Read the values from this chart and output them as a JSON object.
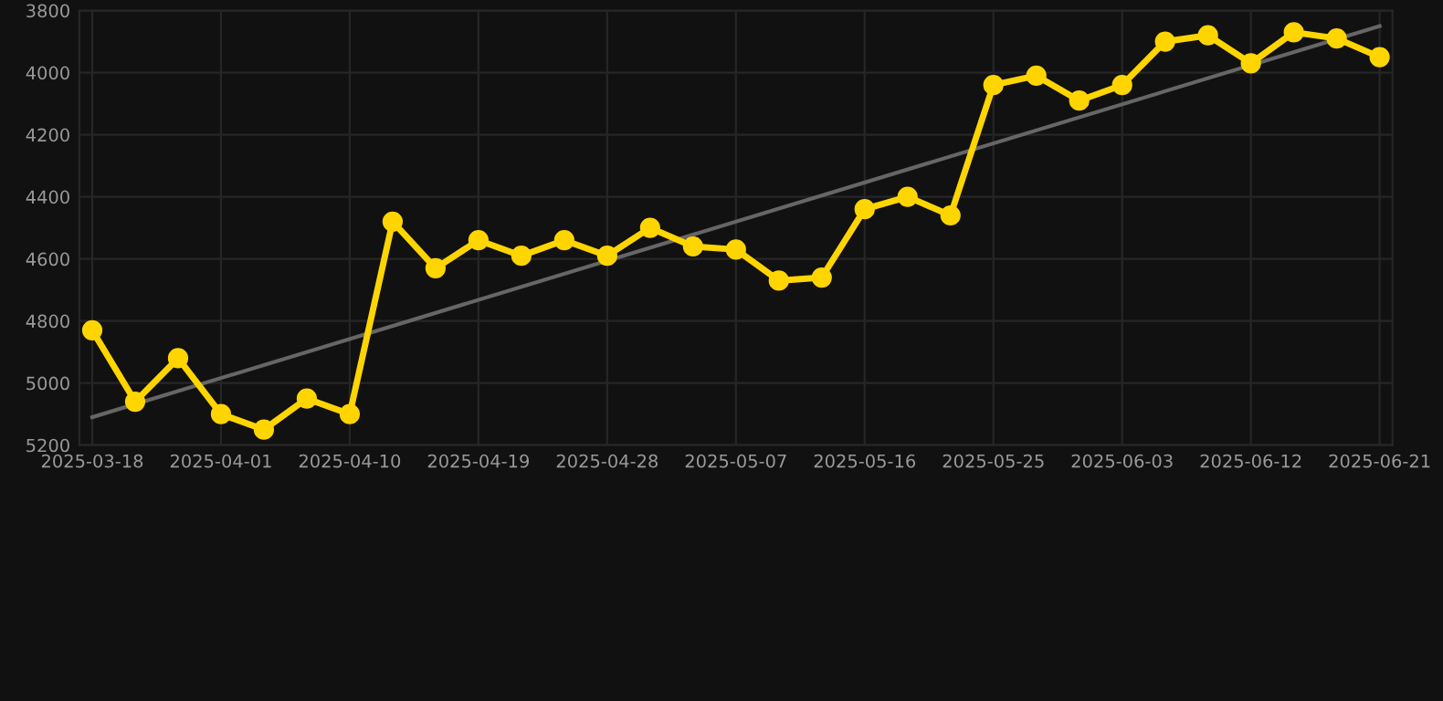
{
  "chart_data": {
    "type": "line",
    "categories": [
      "2025-03-18",
      null,
      null,
      "2025-04-01",
      null,
      null,
      "2025-04-10",
      null,
      null,
      "2025-04-19",
      null,
      null,
      "2025-04-28",
      null,
      null,
      "2025-05-07",
      null,
      null,
      "2025-05-16",
      null,
      null,
      "2025-05-25",
      null,
      null,
      "2025-06-03",
      null,
      null,
      "2025-06-12",
      null,
      null,
      "2025-06-21"
    ],
    "series": [
      {
        "color": "#ffd500",
        "marker": "circle",
        "values": [
          4830,
          5060,
          4920,
          5100,
          5150,
          5050,
          5100,
          4480,
          4630,
          4540,
          4590,
          4540,
          4590,
          4500,
          4560,
          4570,
          4670,
          4660,
          4440,
          4400,
          4460,
          4040,
          4010,
          4090,
          4040,
          3900,
          3880,
          3970,
          3870,
          3890,
          3950
        ]
      },
      {
        "type": "line",
        "color": "#666666",
        "marker": "none",
        "values": [
          5110,
          null,
          null,
          null,
          null,
          null,
          null,
          null,
          null,
          null,
          null,
          null,
          null,
          null,
          null,
          null,
          null,
          null,
          null,
          null,
          null,
          null,
          null,
          null,
          null,
          null,
          null,
          null,
          null,
          null,
          3850
        ]
      }
    ],
    "ylim": [
      5200,
      3800
    ],
    "yticks": [
      3800,
      4000,
      4200,
      4400,
      4600,
      4800,
      5000,
      5200
    ],
    "grid": true,
    "legend": false
  }
}
